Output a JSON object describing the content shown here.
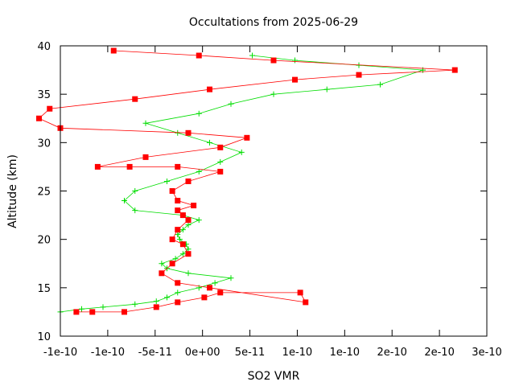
{
  "chart_data": {
    "type": "line",
    "title": "Occultations from 2025-06-29",
    "xlabel": "SO2 VMR",
    "ylabel": "Altitude (km)",
    "xlim": [
      -1e-10,
      3e-10
    ],
    "ylim": [
      10,
      40
    ],
    "x_ticks": [
      "-1e-10",
      "-1e-10",
      "-5e-11",
      "0e+00",
      "5e-11",
      "1e-10",
      "1e-10",
      "2e-10",
      "2e-10",
      "3e-10"
    ],
    "y_ticks": [
      "10",
      "15",
      "20",
      "25",
      "30",
      "35",
      "40"
    ],
    "grid": false,
    "legend": "none",
    "series": [
      {
        "color": "#00dd00",
        "marker": "plus",
        "x": [
          -1e-10,
          -8e-11,
          -6e-11,
          -3e-11,
          -1e-11,
          0.0,
          1e-11,
          3e-11,
          4.5e-11,
          6e-11,
          2e-11,
          0.0,
          -5e-12,
          8e-12,
          1.5e-11,
          2e-11,
          1.8e-11,
          1.2e-11,
          1e-11,
          1.5e-11,
          2e-11,
          3e-11,
          1.5e-11,
          -3e-11,
          -4e-11,
          -3e-11,
          0.0,
          3e-11,
          5e-11,
          7e-11,
          4e-11,
          1e-11,
          -2e-11,
          3e-11,
          6e-11,
          1e-10,
          1.5e-10,
          2e-10,
          2.4e-10,
          1.8e-10,
          1.2e-10,
          8e-11
        ],
        "y": [
          12.5,
          12.8,
          13.0,
          13.3,
          13.6,
          14.0,
          14.5,
          15.0,
          15.5,
          16.0,
          16.5,
          17.0,
          17.5,
          18.0,
          18.5,
          19.0,
          19.5,
          20.0,
          20.5,
          21.0,
          21.5,
          22.0,
          22.5,
          23.0,
          24.0,
          25.0,
          26.0,
          27.0,
          28.0,
          29.0,
          30.0,
          31.0,
          32.0,
          33.0,
          34.0,
          35.0,
          35.5,
          36.0,
          37.5,
          38.0,
          38.5,
          39.0
        ]
      },
      {
        "color": "#ff0000",
        "marker": "square",
        "x": [
          -8.5e-11,
          -7e-11,
          -4e-11,
          -1e-11,
          1e-11,
          3.5e-11,
          5e-11,
          1.25e-10,
          1.3e-10,
          4e-11,
          1e-11,
          -5e-12,
          5e-12,
          2e-11,
          1.5e-11,
          5e-12,
          1e-11,
          2e-11,
          1.5e-11,
          1e-11,
          2.5e-11,
          1e-11,
          5e-12,
          2e-11,
          5e-11,
          1e-11,
          -3.5e-11,
          -6.5e-11,
          -2e-11,
          5e-11,
          7.5e-11,
          2e-11,
          -1e-10,
          -1.2e-10,
          -1.1e-10,
          -3e-11,
          4e-11,
          1.2e-10,
          1.8e-10,
          2.7e-10,
          1e-10,
          3e-11,
          -5e-11
        ],
        "y": [
          12.5,
          12.5,
          12.5,
          13.0,
          13.5,
          14.0,
          14.5,
          14.5,
          13.5,
          15.0,
          15.5,
          16.5,
          17.5,
          18.5,
          19.5,
          20.0,
          21.0,
          22.0,
          22.5,
          23.0,
          23.5,
          24.0,
          25.0,
          26.0,
          27.0,
          27.5,
          27.5,
          27.5,
          28.5,
          29.5,
          30.5,
          31.0,
          31.5,
          32.5,
          33.5,
          34.5,
          35.5,
          36.5,
          37.0,
          37.5,
          38.5,
          39.0,
          39.5
        ]
      }
    ]
  }
}
